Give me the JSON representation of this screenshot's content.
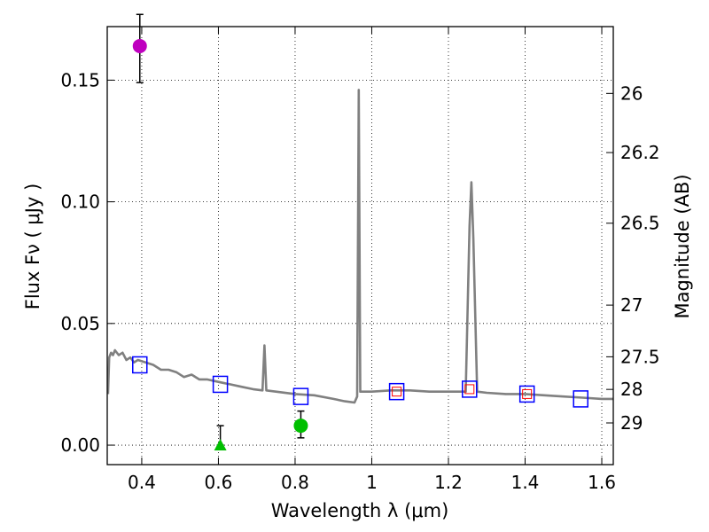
{
  "chart_data": {
    "type": "scatter",
    "xlabel": "Wavelength  λ (μm)",
    "ylabel": "Flux  Fν  ( μJy )",
    "ylabel_right": "Magnitude (AB)",
    "xlim": [
      0.31,
      1.63
    ],
    "ylim": [
      -0.008,
      0.172
    ],
    "grid": true,
    "x_ticks": [
      {
        "value": 0.4,
        "label": "0.4"
      },
      {
        "value": 0.6,
        "label": "0.6"
      },
      {
        "value": 0.8,
        "label": "0.8"
      },
      {
        "value": 1.0,
        "label": "1"
      },
      {
        "value": 1.2,
        "label": "1.2"
      },
      {
        "value": 1.4,
        "label": "1.4"
      },
      {
        "value": 1.6,
        "label": "1.6"
      }
    ],
    "y_ticks": [
      {
        "value": 0.0,
        "label": "0.00"
      },
      {
        "value": 0.05,
        "label": "0.05"
      },
      {
        "value": 0.1,
        "label": "0.10"
      },
      {
        "value": 0.15,
        "label": "0.15"
      }
    ],
    "mag_ticks": [
      {
        "value": 26,
        "label": "26"
      },
      {
        "value": 26.2,
        "label": "26.2"
      },
      {
        "value": 26.5,
        "label": "26.5"
      },
      {
        "value": 27,
        "label": "27"
      },
      {
        "value": 27.5,
        "label": "27.5"
      },
      {
        "value": 28,
        "label": "28"
      },
      {
        "value": 29,
        "label": "29"
      }
    ],
    "template_spectrum": {
      "name": "model spectrum",
      "color": "#808080",
      "points": [
        [
          0.312,
          0.021
        ],
        [
          0.315,
          0.036
        ],
        [
          0.32,
          0.038
        ],
        [
          0.325,
          0.037
        ],
        [
          0.33,
          0.039
        ],
        [
          0.34,
          0.037
        ],
        [
          0.35,
          0.038
        ],
        [
          0.36,
          0.035
        ],
        [
          0.37,
          0.036
        ],
        [
          0.38,
          0.034
        ],
        [
          0.39,
          0.035
        ],
        [
          0.41,
          0.034
        ],
        [
          0.43,
          0.033
        ],
        [
          0.45,
          0.031
        ],
        [
          0.47,
          0.031
        ],
        [
          0.49,
          0.03
        ],
        [
          0.51,
          0.028
        ],
        [
          0.53,
          0.029
        ],
        [
          0.55,
          0.027
        ],
        [
          0.57,
          0.027
        ],
        [
          0.6,
          0.026
        ],
        [
          0.63,
          0.025
        ],
        [
          0.66,
          0.024
        ],
        [
          0.69,
          0.023
        ],
        [
          0.715,
          0.0225
        ],
        [
          0.72,
          0.041
        ],
        [
          0.725,
          0.0225
        ],
        [
          0.75,
          0.022
        ],
        [
          0.8,
          0.021
        ],
        [
          0.85,
          0.0205
        ],
        [
          0.9,
          0.019
        ],
        [
          0.93,
          0.018
        ],
        [
          0.955,
          0.0175
        ],
        [
          0.962,
          0.02
        ],
        [
          0.966,
          0.146
        ],
        [
          0.97,
          0.022
        ],
        [
          0.98,
          0.022
        ],
        [
          1.0,
          0.022
        ],
        [
          1.05,
          0.0225
        ],
        [
          1.1,
          0.0225
        ],
        [
          1.15,
          0.022
        ],
        [
          1.2,
          0.022
        ],
        [
          1.245,
          0.022
        ],
        [
          1.255,
          0.09
        ],
        [
          1.26,
          0.108
        ],
        [
          1.265,
          0.085
        ],
        [
          1.275,
          0.022
        ],
        [
          1.3,
          0.0215
        ],
        [
          1.35,
          0.021
        ],
        [
          1.4,
          0.021
        ],
        [
          1.45,
          0.0205
        ],
        [
          1.5,
          0.02
        ],
        [
          1.55,
          0.0195
        ],
        [
          1.6,
          0.019
        ],
        [
          1.63,
          0.019
        ]
      ]
    },
    "model_fluxes": {
      "marker": "square",
      "color": "#0000ff",
      "points": [
        {
          "x": 0.395,
          "y": 0.033
        },
        {
          "x": 0.605,
          "y": 0.025
        },
        {
          "x": 0.815,
          "y": 0.02
        },
        {
          "x": 1.065,
          "y": 0.022
        },
        {
          "x": 1.255,
          "y": 0.023
        },
        {
          "x": 1.405,
          "y": 0.021
        },
        {
          "x": 1.545,
          "y": 0.019
        }
      ]
    },
    "model_fluxes_small": {
      "marker": "square",
      "color": "#ff0000",
      "points": [
        {
          "x": 1.065,
          "y": 0.022
        },
        {
          "x": 1.255,
          "y": 0.023
        },
        {
          "x": 1.405,
          "y": 0.021
        }
      ]
    },
    "observed": [
      {
        "name": "magenta point",
        "x": 0.395,
        "y": 0.164,
        "err_lo": 0.015,
        "err_hi": 0.013,
        "marker": "circle",
        "color": "#bf00bf"
      },
      {
        "name": "green upper limit",
        "x": 0.605,
        "y": 0.0,
        "err_lo": 0.0,
        "err_hi": 0.008,
        "marker": "triangle",
        "color": "#00bf00"
      },
      {
        "name": "green point",
        "x": 0.815,
        "y": 0.008,
        "err_lo": 0.005,
        "err_hi": 0.006,
        "marker": "circle",
        "color": "#00bf00"
      }
    ]
  }
}
